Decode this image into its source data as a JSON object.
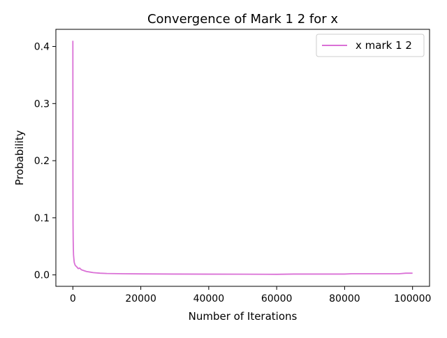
{
  "chart_data": {
    "type": "line",
    "title": "Convergence of Mark 1 2 for x",
    "xlabel": "Number of Iterations",
    "ylabel": "Probability",
    "xlim": [
      -5000,
      105000
    ],
    "ylim": [
      -0.02,
      0.43
    ],
    "xticks": [
      0,
      20000,
      40000,
      60000,
      80000,
      100000
    ],
    "xtick_labels": [
      "0",
      "20000",
      "40000",
      "60000",
      "80000",
      "100000"
    ],
    "yticks": [
      0.0,
      0.1,
      0.2,
      0.3,
      0.4
    ],
    "ytick_labels": [
      "0.0",
      "0.1",
      "0.2",
      "0.3",
      "0.4"
    ],
    "grid": false,
    "legend_position": "top-right",
    "series": [
      {
        "name": "x mark 1 2",
        "color": "#da70d6",
        "x": [
          0,
          20,
          50,
          100,
          150,
          200,
          300,
          400,
          600,
          800,
          1000,
          1300,
          1600,
          2000,
          2500,
          3000,
          4000,
          5000,
          6000,
          8000,
          10000,
          15000,
          20000,
          30000,
          40000,
          50000,
          60000,
          65000,
          70000,
          80000,
          82000,
          90000,
          96000,
          98000,
          100000
        ],
        "y": [
          0.41,
          0.17,
          0.09,
          0.06,
          0.045,
          0.035,
          0.028,
          0.022,
          0.018,
          0.016,
          0.015,
          0.013,
          0.011,
          0.012,
          0.009,
          0.008,
          0.006,
          0.005,
          0.004,
          0.003,
          0.0025,
          0.002,
          0.0018,
          0.0015,
          0.0013,
          0.0012,
          0.001,
          0.0015,
          0.0015,
          0.0015,
          0.002,
          0.002,
          0.002,
          0.003,
          0.003
        ]
      }
    ]
  }
}
